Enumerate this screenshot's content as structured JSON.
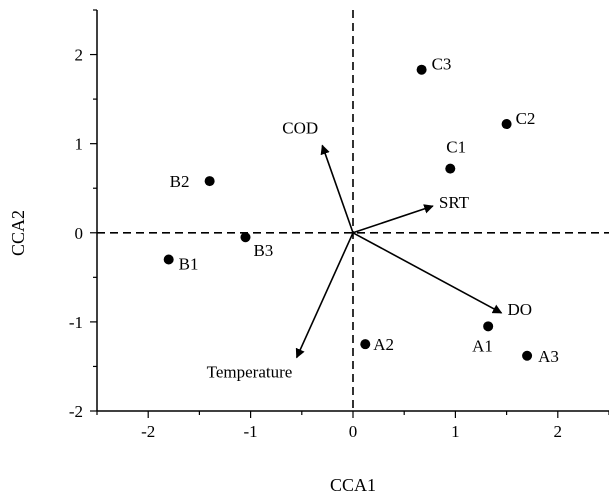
{
  "chart_data": {
    "type": "scatter",
    "xlabel": "CCA1",
    "ylabel": "CCA2",
    "xlim": [
      -2.5,
      2.5
    ],
    "ylim": [
      -2,
      2.5
    ],
    "xticks": [
      -2,
      -1,
      0,
      1,
      2
    ],
    "yticks": [
      -2,
      -1,
      0,
      1,
      2
    ],
    "grid": false,
    "reference_lines": {
      "x": 0,
      "y": 0,
      "style": "dashed"
    },
    "samples": [
      {
        "label": "A1",
        "x": 1.32,
        "y": -1.05
      },
      {
        "label": "A2",
        "x": 0.12,
        "y": -1.25
      },
      {
        "label": "A3",
        "x": 1.7,
        "y": -1.38
      },
      {
        "label": "B1",
        "x": -1.8,
        "y": -0.3
      },
      {
        "label": "B2",
        "x": -1.4,
        "y": 0.58
      },
      {
        "label": "B3",
        "x": -1.05,
        "y": -0.05
      },
      {
        "label": "C1",
        "x": 0.95,
        "y": 0.72
      },
      {
        "label": "C2",
        "x": 1.5,
        "y": 1.22
      },
      {
        "label": "C3",
        "x": 0.67,
        "y": 1.83
      }
    ],
    "vectors": [
      {
        "label": "COD",
        "x": -0.3,
        "y": 0.98
      },
      {
        "label": "SRT",
        "x": 0.78,
        "y": 0.3
      },
      {
        "label": "DO",
        "x": 1.45,
        "y": -0.9
      },
      {
        "label": "Temperature",
        "x": -0.55,
        "y": -1.4
      }
    ]
  }
}
